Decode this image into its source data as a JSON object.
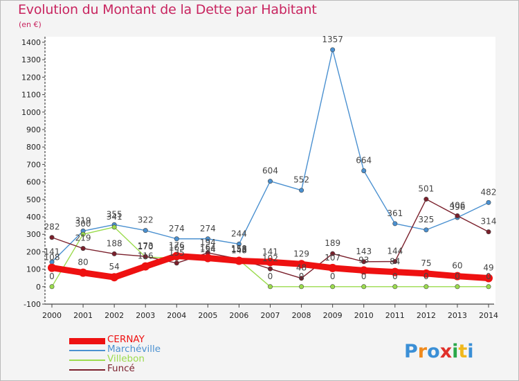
{
  "title": "Evolution du Montant de la Dette par Habitant",
  "subtitle": "(en €)",
  "logo_text": "Proxiti",
  "chart_data": {
    "type": "line",
    "x": [
      "2000",
      "2001",
      "2002",
      "2003",
      "2004",
      "2005",
      "2006",
      "2007",
      "2008",
      "2009",
      "2010",
      "2011",
      "2012",
      "2013",
      "2014"
    ],
    "ylim": [
      -100,
      1400
    ],
    "yticks": [
      -100,
      0,
      100,
      200,
      300,
      400,
      500,
      600,
      700,
      800,
      900,
      1000,
      1100,
      1200,
      1300,
      1400
    ],
    "grid": false,
    "legend_position": "bottom-left",
    "series": [
      {
        "name": "Marchéville",
        "color": "#4a90d0",
        "values": [
          141,
          319,
          355,
          322,
          274,
          274,
          244,
          604,
          552,
          1357,
          664,
          361,
          325,
          396,
          482
        ],
        "labels": [
          "141",
          "319",
          "355",
          "322",
          "274",
          "274",
          "244",
          "604",
          "552",
          "1357",
          "664",
          "361",
          "325",
          "396",
          "482"
        ]
      },
      {
        "name": "Villebon",
        "color": "#9bdb4d",
        "values": [
          0,
          300,
          341,
          170,
          163,
          154,
          153,
          0,
          0,
          0,
          0,
          0,
          0,
          0,
          0
        ],
        "labels": [
          "0",
          "300",
          "341",
          "170",
          "163",
          "154",
          "153",
          "0",
          "0",
          "0",
          "0",
          "0",
          "0",
          "0",
          "0"
        ]
      },
      {
        "name": "Funcé",
        "color": "#7a1f2b",
        "values": [
          282,
          219,
          188,
          173,
          135,
          194,
          158,
          102,
          48,
          189,
          143,
          144,
          501,
          406,
          314
        ],
        "labels": [
          "282",
          "219",
          "188",
          "173",
          "135",
          "194",
          "158",
          "102",
          "48",
          "189",
          "143",
          "144",
          "501",
          "406",
          "314"
        ]
      },
      {
        "name": "CERNAY",
        "color": "#ee1111",
        "values": [
          108,
          80,
          54,
          116,
          176,
          164,
          148,
          141,
          129,
          107,
          93,
          84,
          75,
          60,
          49
        ],
        "labels": [
          "108",
          "80",
          "54",
          "116",
          "176",
          "164",
          "148",
          "141",
          "129",
          "107",
          "93",
          "84",
          "75",
          "60",
          "49"
        ]
      }
    ]
  }
}
